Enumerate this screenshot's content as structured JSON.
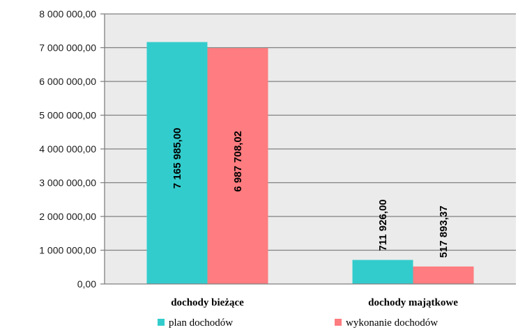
{
  "chart_data": {
    "type": "bar",
    "categories": [
      "dochody bieżące",
      "dochody majątkowe"
    ],
    "series": [
      {
        "name": "plan dochodów",
        "values": [
          7165985.0,
          711926.0
        ],
        "labels": [
          "7 165 985,00",
          "711 926,00"
        ],
        "color": "#33CCCC"
      },
      {
        "name": "wykonanie dochodów",
        "values": [
          6987708.02,
          517893.37
        ],
        "labels": [
          "6 987 708,02",
          "517 893,37"
        ],
        "color": "#FF7C80"
      }
    ],
    "ylim": [
      0,
      8000000
    ],
    "yticks": [
      {
        "value": 0,
        "label": "0,00"
      },
      {
        "value": 1000000,
        "label": "1 000 000,00"
      },
      {
        "value": 2000000,
        "label": "2 000 000,00"
      },
      {
        "value": 3000000,
        "label": "3 000 000,00"
      },
      {
        "value": 4000000,
        "label": "4 000 000,00"
      },
      {
        "value": 5000000,
        "label": "5 000 000,00"
      },
      {
        "value": 6000000,
        "label": "6 000 000,00"
      },
      {
        "value": 7000000,
        "label": "7 000 000,00"
      },
      {
        "value": 8000000,
        "label": "8 000 000,00"
      }
    ],
    "grid": true,
    "legend": "bottom",
    "colors": {
      "plot_background": "#EBEBEB",
      "gridline": "#7F7F7F"
    }
  }
}
